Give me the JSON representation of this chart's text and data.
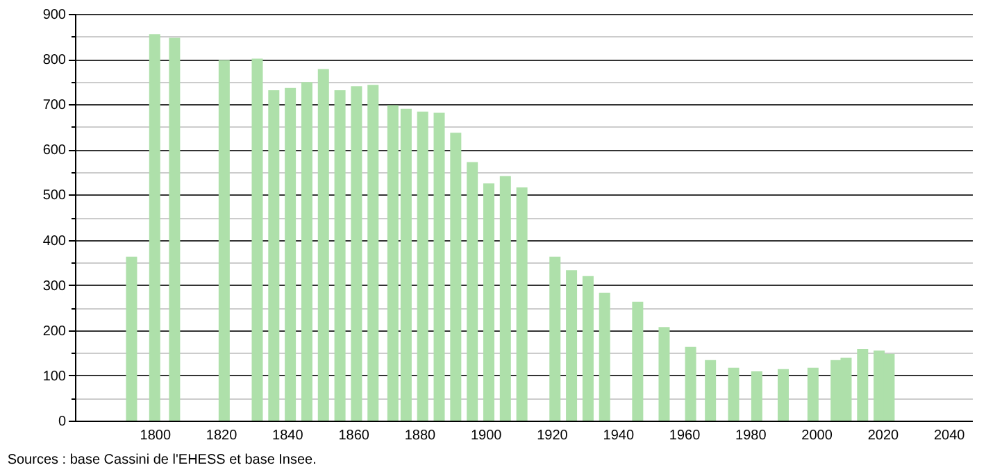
{
  "chart_data": {
    "type": "bar",
    "x": [
      1793,
      1800,
      1806,
      1821,
      1831,
      1836,
      1841,
      1846,
      1851,
      1856,
      1861,
      1866,
      1872,
      1876,
      1881,
      1886,
      1891,
      1896,
      1901,
      1906,
      1911,
      1921,
      1926,
      1931,
      1936,
      1946,
      1954,
      1962,
      1968,
      1975,
      1982,
      1990,
      1999,
      2006,
      2009,
      2014,
      2019,
      2022
    ],
    "values": [
      363,
      855,
      847,
      798,
      801,
      731,
      736,
      749,
      778,
      731,
      740,
      743,
      698,
      690,
      684,
      681,
      637,
      572,
      525,
      541,
      516,
      363,
      333,
      320,
      283,
      263,
      207,
      163,
      134,
      117,
      109,
      114,
      117,
      134,
      139,
      158,
      155,
      148
    ],
    "color": "#aee0aa",
    "xlim": [
      1778,
      2045
    ],
    "xticks": [
      1800,
      1820,
      1840,
      1860,
      1880,
      1900,
      1920,
      1940,
      1960,
      1980,
      2000,
      2020,
      2040
    ],
    "ylim": [
      0,
      900
    ],
    "yticks": [
      0,
      {
        "value": 50,
        "label": null
      },
      100,
      {
        "value": 150,
        "label": null
      },
      200,
      {
        "value": 250,
        "label": null
      },
      300,
      {
        "value": 350,
        "label": null
      },
      400,
      {
        "value": 450,
        "label": null
      },
      500,
      {
        "value": 550,
        "label": null
      },
      600,
      {
        "value": 650,
        "label": null
      },
      700,
      {
        "value": 750,
        "label": null
      },
      800,
      {
        "value": 850,
        "label": null
      },
      900
    ],
    "grid": "y",
    "annotations": [
      "Sources : base Cassini de l'EHESS et base Insee."
    ]
  }
}
